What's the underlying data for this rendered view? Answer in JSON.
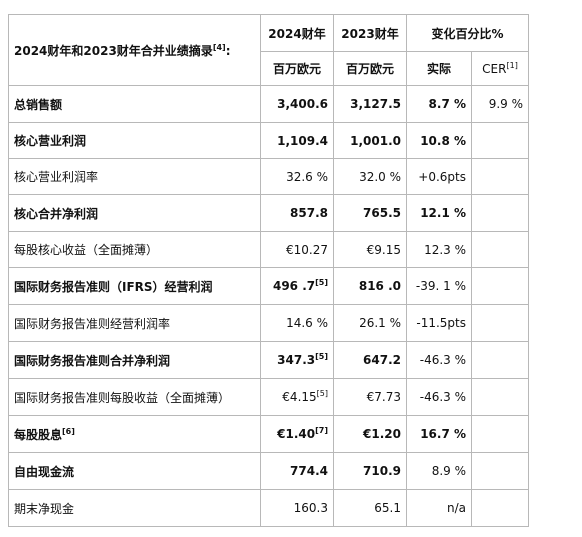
{
  "header": {
    "title": "2024财年和2023财年合并业绩摘录",
    "title_note": "[4]",
    "title_suffix": ":",
    "col_2024": "2024财年",
    "col_2023": "2023财年",
    "col_change": "变化百分比%",
    "unit_2024": "百万欧元",
    "unit_2023": "百万欧元",
    "col_actual": "实际",
    "col_cer": "CER",
    "col_cer_note": "[1]"
  },
  "rows": [
    {
      "label": "总销售额",
      "label_note": "",
      "v2024": "3,400.6",
      "v2024_note": "",
      "v2023": "3,127.5",
      "v2023_note": "",
      "actual": "8.7 %",
      "cer": "9.9 %"
    },
    {
      "label": "核心营业利润",
      "label_note": "",
      "v2024": "1,109.4",
      "v2024_note": "",
      "v2023": "1,001.0",
      "v2023_note": "",
      "actual": "10.8 %",
      "cer": ""
    },
    {
      "label": "核心营业利润率",
      "label_note": "",
      "v2024": "32.6 %",
      "v2024_note": "",
      "v2023": "32.0 %",
      "v2023_note": "",
      "actual": "+0.6pts",
      "cer": ""
    },
    {
      "label": "核心合并净利润",
      "label_note": "",
      "v2024": "857.8",
      "v2024_note": "",
      "v2023": "765.5",
      "v2023_note": "",
      "actual": "12.1 %",
      "cer": ""
    },
    {
      "label": "每股核心收益（全面摊薄）",
      "label_note": "",
      "v2024": "€10.27",
      "v2024_note": "",
      "v2023": "€9.15",
      "v2023_note": "",
      "actual": "12.3 %",
      "cer": ""
    },
    {
      "label": "国际财务报告准则（IFRS）经营利润",
      "label_note": "",
      "v2024": "496 .7",
      "v2024_note": "[5]",
      "v2023": "816 .0",
      "v2023_note": "",
      "actual": "-39. 1 %",
      "cer": ""
    },
    {
      "label": "国际财务报告准则经营利润率",
      "label_note": "",
      "v2024": "14.6 %",
      "v2024_note": "",
      "v2023": "26.1 %",
      "v2023_note": "",
      "actual": "-11.5pts",
      "cer": ""
    },
    {
      "label": "国际财务报告准则合并净利润",
      "label_note": "",
      "v2024": "347.3",
      "v2024_note": "[5]",
      "v2023": "647.2",
      "v2023_note": "",
      "actual": "-46.3 %",
      "cer": ""
    },
    {
      "label": "国际财务报告准则每股收益（全面摊薄）",
      "label_note": "",
      "v2024": "€4.15",
      "v2024_note": "[5]",
      "v2023": "€7.73",
      "v2023_note": "",
      "actual": "-46.3 %",
      "cer": ""
    },
    {
      "label": "每股股息",
      "label_note": "[6]",
      "v2024": "€1.40",
      "v2024_note": "[7]",
      "v2023": "€1.20",
      "v2023_note": "",
      "actual": "16.7 %",
      "cer": ""
    },
    {
      "label": "自由现金流",
      "label_note": "",
      "v2024": "774.4",
      "v2024_note": "",
      "v2023": "710.9",
      "v2023_note": "",
      "actual": "8.9 %",
      "cer": ""
    },
    {
      "label": "期末净现金",
      "label_note": "",
      "v2024": "160.3",
      "v2024_note": "",
      "v2023": "65.1",
      "v2023_note": "",
      "actual": "n/a",
      "cer": ""
    }
  ]
}
